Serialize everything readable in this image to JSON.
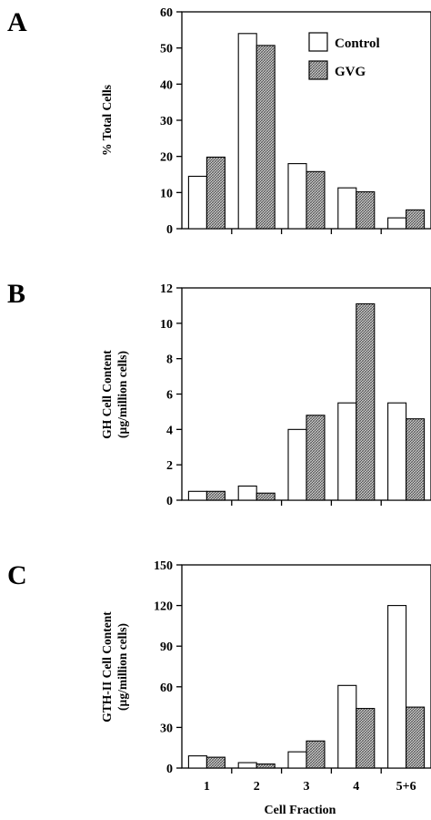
{
  "colors": {
    "control": "#ffffff",
    "treated_pattern": "crosshatch-grey",
    "ink": "#000000"
  },
  "chart_data": [
    {
      "type": "bar",
      "panel": "A",
      "categories": [
        "1",
        "2",
        "3",
        "4",
        "5+6"
      ],
      "series": [
        {
          "name": "Control",
          "values": [
            14.5,
            54,
            18,
            11.3,
            3
          ]
        },
        {
          "name": "GVG",
          "values": [
            19.8,
            50.7,
            15.8,
            10.2,
            5.2
          ]
        }
      ],
      "ylabel": "% Total Cells",
      "ylim": [
        0,
        60
      ],
      "yticks": [
        "0",
        "10",
        "20",
        "30",
        "40",
        "50",
        "60"
      ],
      "legend": "top-right",
      "grid": false
    },
    {
      "type": "bar",
      "panel": "B",
      "categories": [
        "1",
        "2",
        "3",
        "4",
        "5+6"
      ],
      "series": [
        {
          "name": "Control",
          "values": [
            0.5,
            0.8,
            4.0,
            5.5,
            5.5
          ]
        },
        {
          "name": "GVG",
          "values": [
            0.5,
            0.4,
            4.8,
            11.1,
            4.6
          ]
        }
      ],
      "ylabel_line1": "GH Cell Content",
      "ylabel_line2": "(µg/million cells)",
      "ylim": [
        0,
        12
      ],
      "yticks": [
        "0",
        "2",
        "4",
        "6",
        "8",
        "10",
        "12"
      ],
      "grid": false
    },
    {
      "type": "bar",
      "panel": "C",
      "categories": [
        "1",
        "2",
        "3",
        "4",
        "5+6"
      ],
      "series": [
        {
          "name": "Control",
          "values": [
            9,
            4,
            12,
            61,
            120
          ]
        },
        {
          "name": "GVG",
          "values": [
            8,
            3,
            20,
            44,
            45
          ]
        }
      ],
      "ylabel_line1": "GTH-II Cell Content",
      "ylabel_line2": "(µg/million cells)",
      "ylim": [
        0,
        150
      ],
      "yticks": [
        "0",
        "30",
        "60",
        "90",
        "120",
        "150"
      ],
      "xlabel": "Cell Fraction",
      "grid": false
    }
  ]
}
